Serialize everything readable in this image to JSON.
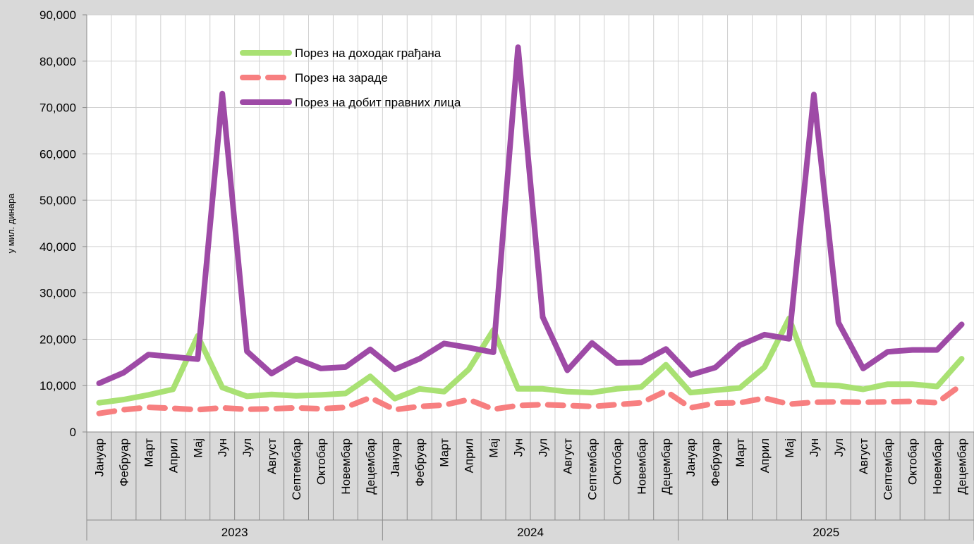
{
  "chart_data": {
    "type": "line",
    "ylabel": "у мил. динара",
    "ylim": [
      0,
      90000
    ],
    "yticks": [
      0,
      10000,
      20000,
      30000,
      40000,
      50000,
      60000,
      70000,
      80000,
      90000
    ],
    "ytick_labels": [
      "0",
      "10,000",
      "20,000",
      "30,000",
      "40,000",
      "50,000",
      "60,000",
      "70,000",
      "80,000",
      "90,000"
    ],
    "grid": true,
    "legend_position": "top-center",
    "months": [
      "Јануар",
      "Фебруар",
      "Март",
      "Април",
      "Мај",
      "Јун",
      "Јул",
      "Август",
      "Септембар",
      "Октобар",
      "Новембар",
      "Децембар"
    ],
    "years": [
      "2023",
      "2024",
      "2025"
    ],
    "series": [
      {
        "name": "Порез на доходак грађана",
        "color": "#a9e173",
        "style": "solid",
        "values": [
          6300,
          7000,
          8000,
          9200,
          20700,
          9600,
          7700,
          8100,
          7800,
          8000,
          8300,
          12000,
          7200,
          9300,
          8700,
          13500,
          22000,
          9300,
          9300,
          8700,
          8500,
          9300,
          9700,
          14500,
          8500,
          9000,
          9500,
          14000,
          24500,
          10200,
          10000,
          9200,
          10300,
          10300,
          9800,
          15800
        ]
      },
      {
        "name": "Порез на зараде",
        "color": "#f77f80",
        "style": "dashed",
        "values": [
          4000,
          4800,
          5300,
          5100,
          4800,
          5200,
          4900,
          5000,
          5200,
          5000,
          5300,
          7400,
          4800,
          5500,
          5800,
          7000,
          4900,
          5700,
          5900,
          5700,
          5500,
          5900,
          6300,
          8800,
          5200,
          6200,
          6300,
          7300,
          6000,
          6400,
          6500,
          6400,
          6500,
          6600,
          6300,
          10200
        ]
      },
      {
        "name": "Порез на добит правних лица",
        "color": "#9e4aa6",
        "style": "solid",
        "values": [
          10500,
          12800,
          16700,
          16200,
          15700,
          73000,
          17400,
          12600,
          15800,
          13700,
          14000,
          17800,
          13500,
          15800,
          19100,
          18200,
          17200,
          83000,
          24800,
          13300,
          19200,
          14900,
          15000,
          17900,
          12300,
          13900,
          18700,
          21000,
          20100,
          72800,
          23600,
          13700,
          17300,
          17700,
          17700,
          23200
        ]
      }
    ]
  }
}
